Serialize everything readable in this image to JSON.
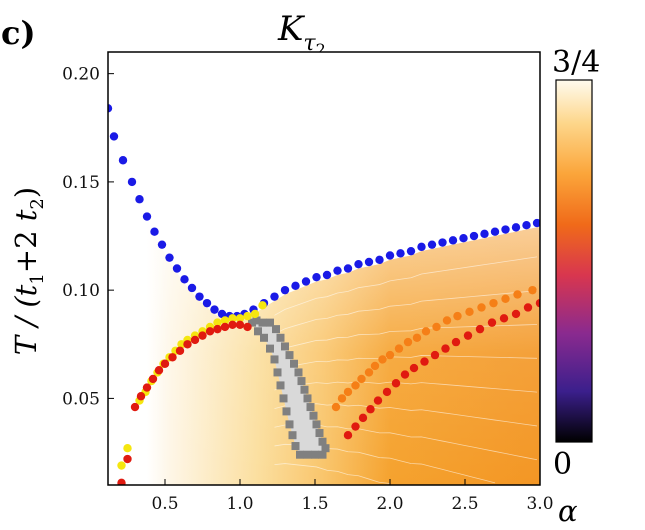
{
  "panel_label": "c)",
  "chart_data": {
    "type": "scatter",
    "title": "K",
    "title_subscript": "τ",
    "title_subsubscript": "2",
    "xlabel": "α",
    "ylabel": "T / (t1+2 t2)",
    "ylabel_parts": [
      "T / (",
      "t",
      "1",
      "+2 ",
      "t",
      "2",
      ")"
    ],
    "xlim": [
      0.12,
      3.0
    ],
    "ylim": [
      0.01,
      0.21
    ],
    "xticks": [
      0.5,
      1.0,
      1.5,
      2.0,
      2.5,
      3.0
    ],
    "xtick_labels": [
      "0.5",
      "1.0",
      "1.5",
      "2.0",
      "2.5",
      "3.0"
    ],
    "yticks": [
      0.05,
      0.1,
      0.15,
      0.2
    ],
    "ytick_labels": [
      "0.05",
      "0.10",
      "0.15",
      "0.20"
    ],
    "colorbar": {
      "min_label": "0",
      "max_label": "3/4",
      "range": [
        0,
        0.75
      ],
      "colormap": [
        "#000000",
        "#3b1f8c",
        "#8a2a8f",
        "#d8364f",
        "#f06a19",
        "#fba53a",
        "#fdd68a",
        "#fffbee"
      ]
    },
    "background": {
      "description_colors": [
        "#fde9b6",
        "#f9c26a",
        "#f5a02c",
        "#f39522"
      ]
    },
    "shaded_region": {
      "fill": "#d9d9d9",
      "marker_color": "#808080",
      "boundary": [
        [
          1.08,
          0.085
        ],
        [
          1.11,
          0.086
        ],
        [
          1.15,
          0.085
        ],
        [
          1.2,
          0.085
        ],
        [
          1.24,
          0.082
        ],
        [
          1.27,
          0.078
        ],
        [
          1.3,
          0.074
        ],
        [
          1.33,
          0.07
        ],
        [
          1.36,
          0.066
        ],
        [
          1.39,
          0.062
        ],
        [
          1.41,
          0.058
        ],
        [
          1.43,
          0.054
        ],
        [
          1.45,
          0.05
        ],
        [
          1.47,
          0.046
        ],
        [
          1.49,
          0.042
        ],
        [
          1.51,
          0.038
        ],
        [
          1.53,
          0.034
        ],
        [
          1.55,
          0.03
        ],
        [
          1.57,
          0.027
        ],
        [
          1.55,
          0.024
        ],
        [
          1.5,
          0.024
        ],
        [
          1.45,
          0.024
        ],
        [
          1.4,
          0.024
        ],
        [
          1.37,
          0.028
        ],
        [
          1.35,
          0.033
        ],
        [
          1.33,
          0.038
        ],
        [
          1.31,
          0.044
        ],
        [
          1.29,
          0.05
        ],
        [
          1.27,
          0.056
        ],
        [
          1.25,
          0.062
        ],
        [
          1.23,
          0.068
        ],
        [
          1.2,
          0.073
        ],
        [
          1.16,
          0.078
        ],
        [
          1.12,
          0.081
        ]
      ]
    },
    "series": [
      {
        "name": "blue",
        "color": "#1a1ae6",
        "x": [
          0.12,
          0.16,
          0.22,
          0.28,
          0.33,
          0.38,
          0.43,
          0.48,
          0.53,
          0.58,
          0.63,
          0.68,
          0.73,
          0.78,
          0.83,
          0.88,
          0.93,
          0.98,
          1.03,
          1.09,
          1.16,
          1.23,
          1.3,
          1.37,
          1.44,
          1.51,
          1.58,
          1.65,
          1.72,
          1.79,
          1.86,
          1.93,
          2.0,
          2.07,
          2.14,
          2.21,
          2.28,
          2.35,
          2.42,
          2.49,
          2.56,
          2.63,
          2.7,
          2.77,
          2.84,
          2.91,
          2.98
        ],
        "y": [
          0.184,
          0.171,
          0.16,
          0.15,
          0.142,
          0.134,
          0.127,
          0.121,
          0.115,
          0.11,
          0.105,
          0.101,
          0.097,
          0.094,
          0.091,
          0.089,
          0.088,
          0.088,
          0.089,
          0.091,
          0.094,
          0.097,
          0.1,
          0.102,
          0.104,
          0.106,
          0.107,
          0.109,
          0.11,
          0.112,
          0.113,
          0.114,
          0.116,
          0.117,
          0.118,
          0.12,
          0.121,
          0.122,
          0.123,
          0.124,
          0.125,
          0.126,
          0.127,
          0.128,
          0.129,
          0.13,
          0.131
        ]
      },
      {
        "name": "yellow",
        "color": "#f5e60f",
        "x": [
          0.21,
          0.25,
          0.33,
          0.37,
          0.41,
          0.45,
          0.49,
          0.53,
          0.57,
          0.61,
          0.65,
          0.7,
          0.75,
          0.8,
          0.85,
          0.9,
          0.95,
          1.0,
          1.05,
          1.1,
          1.15
        ],
        "y": [
          0.019,
          0.027,
          0.049,
          0.053,
          0.058,
          0.062,
          0.066,
          0.069,
          0.072,
          0.075,
          0.077,
          0.079,
          0.081,
          0.083,
          0.085,
          0.086,
          0.087,
          0.087,
          0.088,
          0.089,
          0.093
        ]
      },
      {
        "name": "orange",
        "color": "#f57f17",
        "x": [
          1.64,
          1.68,
          1.72,
          1.77,
          1.81,
          1.86,
          1.9,
          1.95,
          2.0,
          2.06,
          2.12,
          2.18,
          2.24,
          2.31,
          2.38,
          2.45,
          2.53,
          2.61,
          2.69,
          2.77,
          2.85,
          2.95
        ],
        "y": [
          0.046,
          0.05,
          0.053,
          0.056,
          0.059,
          0.062,
          0.065,
          0.068,
          0.07,
          0.073,
          0.076,
          0.078,
          0.081,
          0.083,
          0.086,
          0.088,
          0.09,
          0.092,
          0.094,
          0.096,
          0.098,
          0.1
        ]
      },
      {
        "name": "red",
        "color": "#e01a10",
        "x": [
          0.21,
          0.25,
          0.3,
          0.34,
          0.38,
          0.42,
          0.46,
          0.5,
          0.55,
          0.6,
          0.65,
          0.7,
          0.75,
          0.8,
          0.85,
          0.9,
          0.95,
          1.0,
          1.05,
          1.72,
          1.77,
          1.82,
          1.87,
          1.92,
          1.98,
          2.04,
          2.1,
          2.16,
          2.23,
          2.3,
          2.37,
          2.44,
          2.52,
          2.6,
          2.68,
          2.76,
          2.84,
          2.92,
          3.0
        ],
        "y": [
          0.011,
          0.022,
          0.046,
          0.051,
          0.055,
          0.059,
          0.063,
          0.066,
          0.069,
          0.072,
          0.075,
          0.077,
          0.079,
          0.081,
          0.082,
          0.083,
          0.084,
          0.084,
          0.083,
          0.033,
          0.037,
          0.041,
          0.045,
          0.049,
          0.053,
          0.057,
          0.061,
          0.064,
          0.067,
          0.07,
          0.073,
          0.076,
          0.079,
          0.082,
          0.085,
          0.087,
          0.089,
          0.092,
          0.094
        ]
      }
    ]
  }
}
